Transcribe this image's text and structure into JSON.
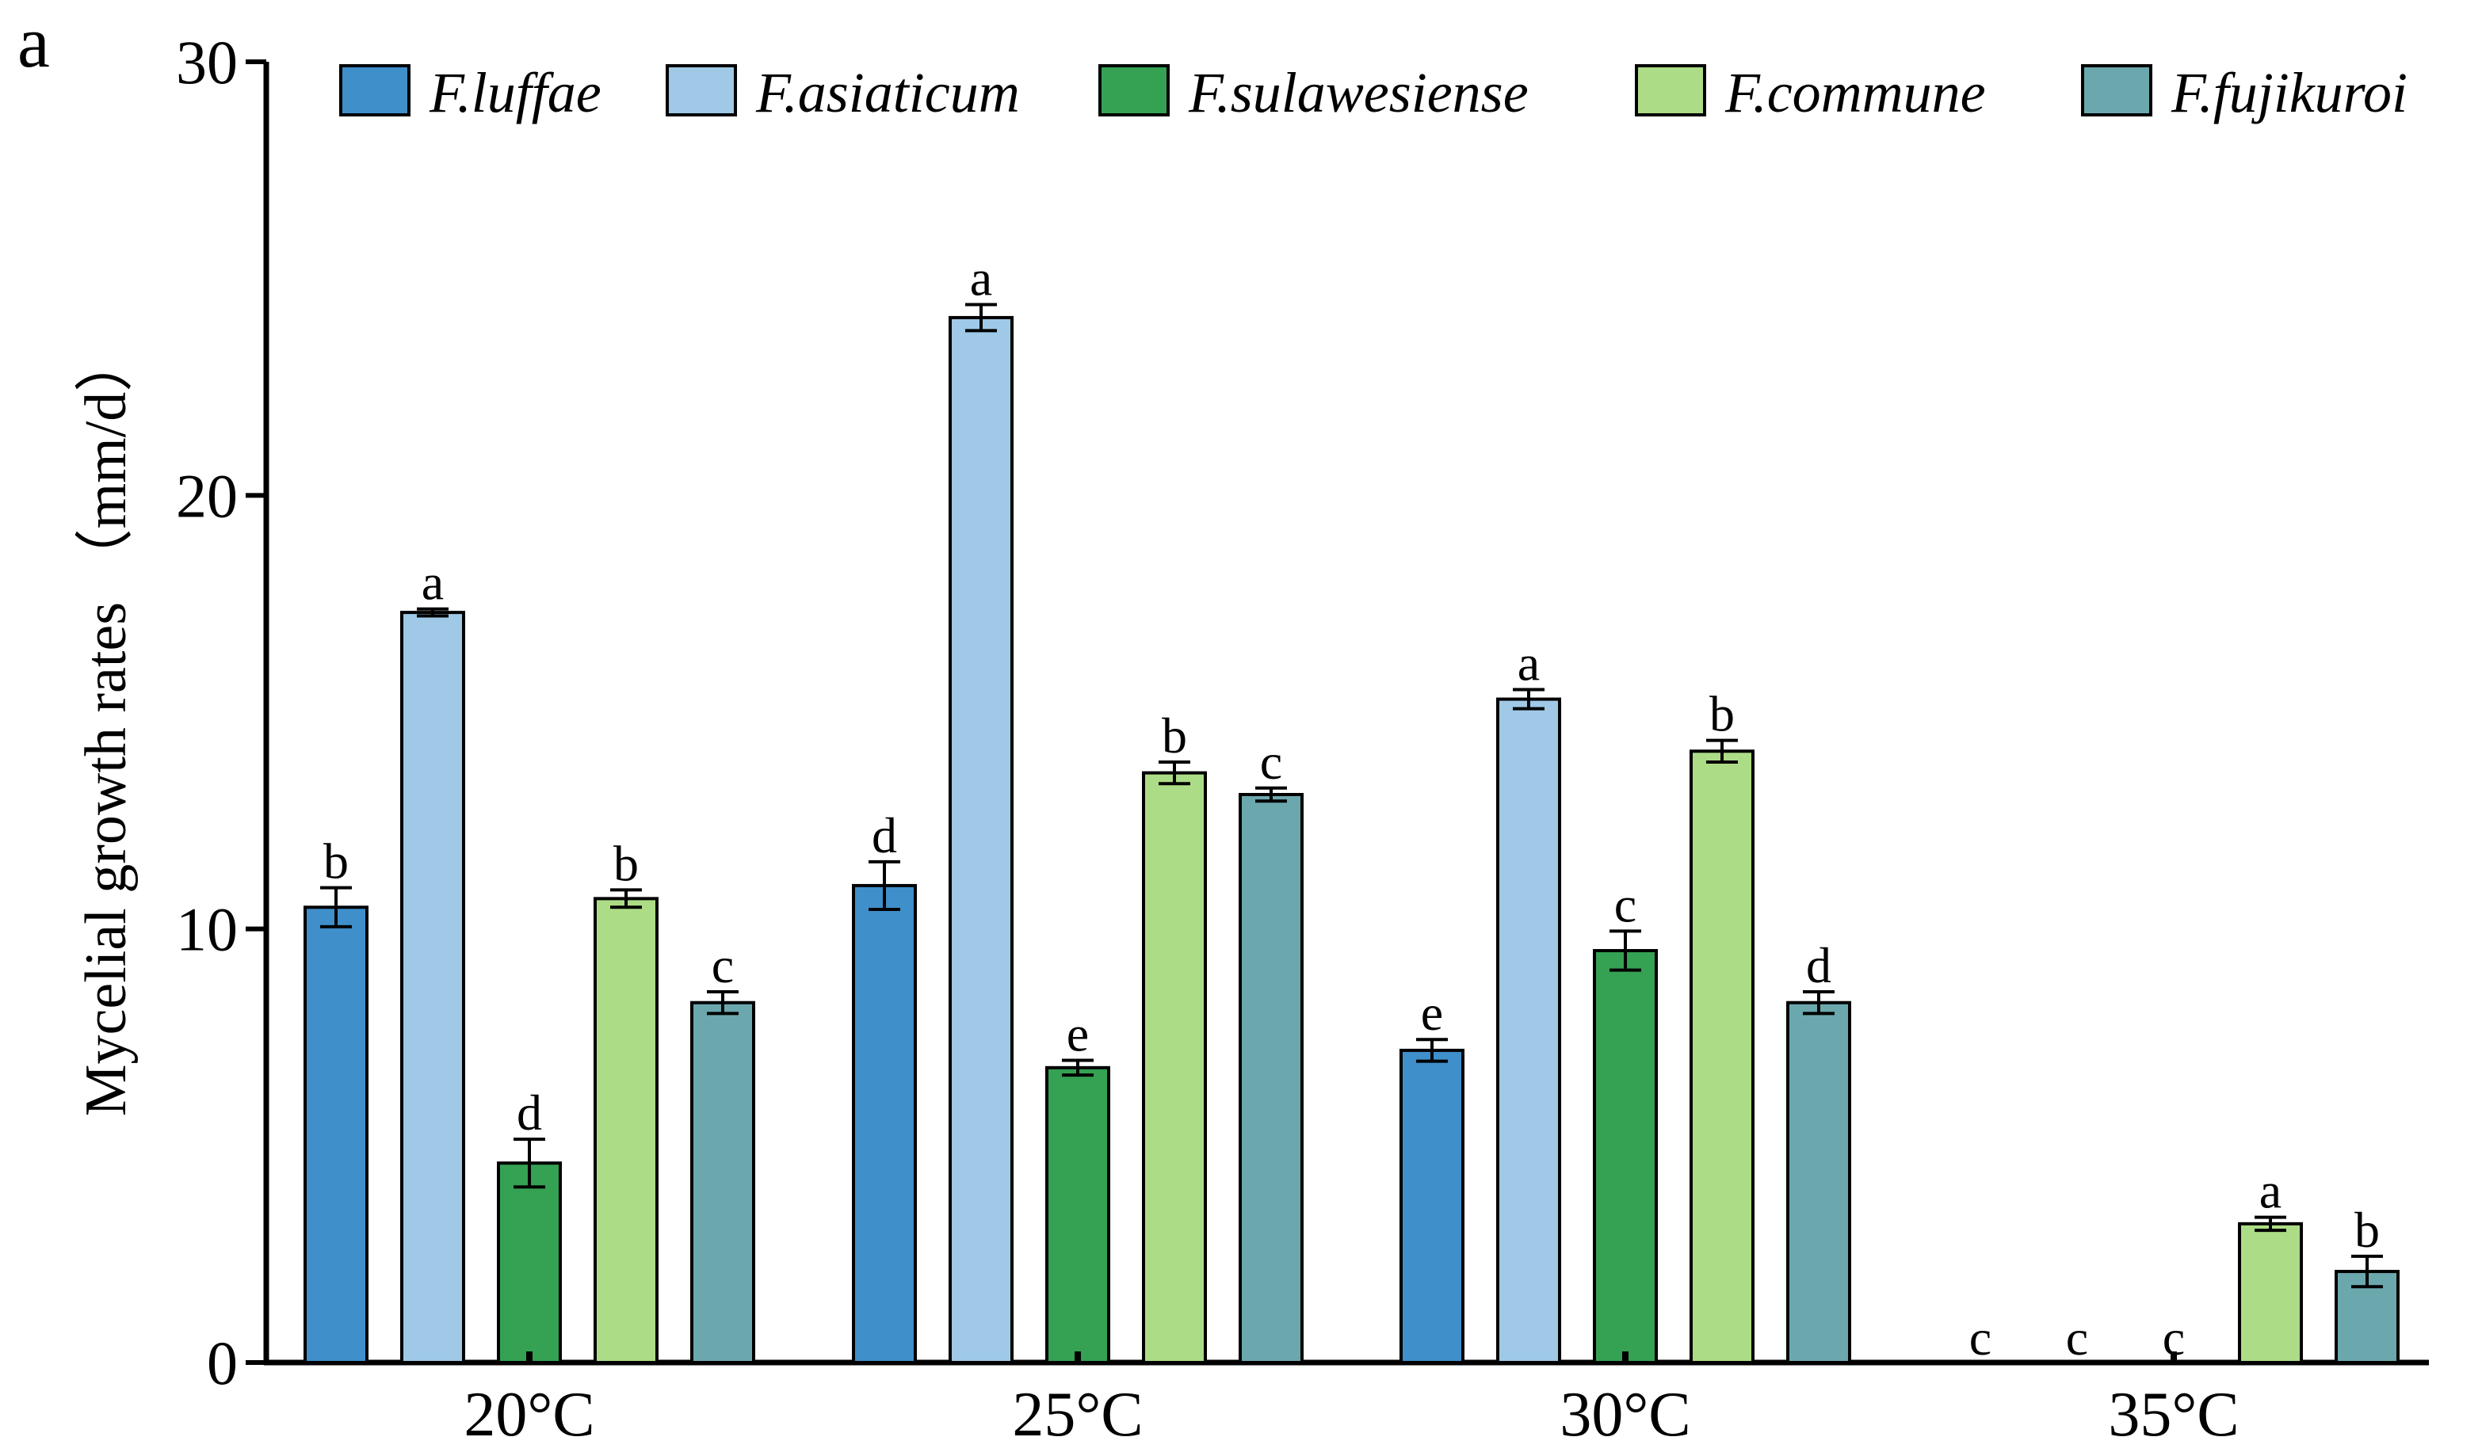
{
  "panel_label": "a",
  "chart_data": {
    "type": "bar",
    "ylabel": "Mycelial growth rates （mm/d）",
    "xlabel": "",
    "ylim": [
      0,
      30
    ],
    "yticks": [
      "0",
      "10",
      "20",
      "30"
    ],
    "categories": [
      "20°C",
      "25°C",
      "30°C",
      "35°C"
    ],
    "legend_position": "top",
    "series": [
      {
        "name": "F.luffae",
        "color": "#3f8fcb",
        "values": [
          10.5,
          11.0,
          7.2,
          0
        ],
        "errors": [
          0.45,
          0.55,
          0.25,
          0
        ],
        "letters": [
          "b",
          "d",
          "e",
          "c"
        ]
      },
      {
        "name": "F.asiaticum",
        "color": "#9fc9e6",
        "values": [
          17.3,
          24.1,
          15.3,
          0
        ],
        "errors": [
          0.08,
          0.3,
          0.22,
          0
        ],
        "letters": [
          "a",
          "a",
          "a",
          "c"
        ]
      },
      {
        "name": "F.sulawesiense",
        "color": "#35a153",
        "values": [
          4.6,
          6.8,
          9.5,
          0
        ],
        "errors": [
          0.55,
          0.17,
          0.45,
          0
        ],
        "letters": [
          "d",
          "e",
          "c",
          "c"
        ]
      },
      {
        "name": "F.commune",
        "color": "#addc87",
        "values": [
          10.7,
          13.6,
          14.1,
          3.2
        ],
        "errors": [
          0.2,
          0.25,
          0.25,
          0.15
        ],
        "letters": [
          "b",
          "b",
          "b",
          "a"
        ]
      },
      {
        "name": "F.fujikuroi",
        "color": "#6ba8ae",
        "values": [
          8.3,
          13.1,
          8.3,
          2.1
        ],
        "errors": [
          0.25,
          0.15,
          0.25,
          0.35
        ],
        "letters": [
          "c",
          "c",
          "d",
          "b"
        ]
      }
    ]
  }
}
